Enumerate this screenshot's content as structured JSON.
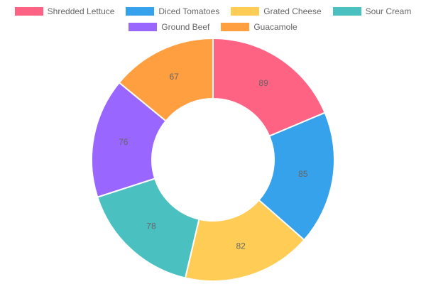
{
  "chart_data": {
    "type": "pie",
    "subtype": "doughnut",
    "title": "",
    "categories": [
      "Shredded Lettuce",
      "Diced Tomatoes",
      "Grated Cheese",
      "Sour Cream",
      "Ground Beef",
      "Guacamole"
    ],
    "values": [
      89,
      85,
      82,
      78,
      76,
      67
    ],
    "colors": [
      "#ff6384",
      "#36a2eb",
      "#ffcd56",
      "#4bc0c0",
      "#9966ff",
      "#ff9f40"
    ],
    "legend_position": "top",
    "slice_border_color": "#ffffff"
  }
}
